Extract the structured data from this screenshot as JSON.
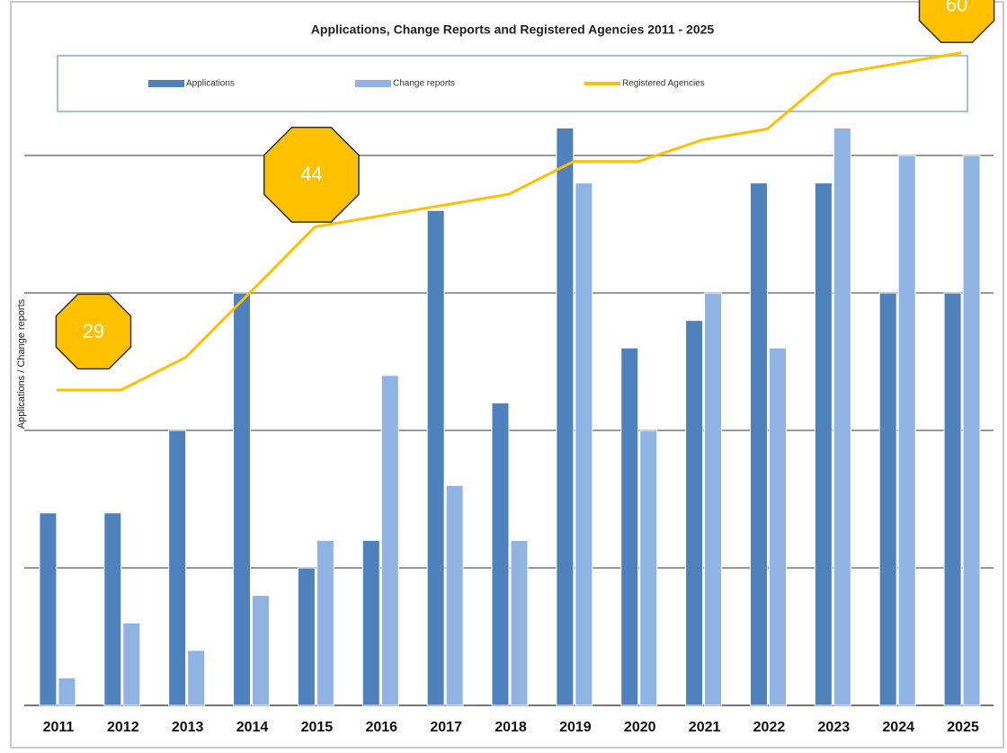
{
  "chart_data": {
    "type": "bar",
    "title": "Applications, Change Reports and Registered Agencies 2011 - 2025",
    "y_label": "Applications  / Change reports",
    "categories": [
      "2011",
      "2012",
      "2013",
      "2014",
      "2015",
      "2016",
      "2017",
      "2018",
      "2019",
      "2020",
      "2021",
      "2022",
      "2023",
      "2024",
      "2025"
    ],
    "series": [
      {
        "name": "Applications",
        "color": "#4f81bd",
        "values": [
          1.4,
          1.4,
          2.0,
          3.0,
          1.0,
          1.2,
          3.6,
          2.2,
          4.2,
          2.6,
          2.8,
          3.8,
          3.8,
          3.0,
          3.0
        ]
      },
      {
        "name": "Change reports",
        "color": "#8fb4e3",
        "values": [
          0.2,
          0.6,
          0.4,
          0.8,
          1.2,
          2.4,
          1.6,
          1.2,
          3.8,
          2.0,
          3.0,
          2.6,
          4.2,
          4.0,
          4.0
        ]
      },
      {
        "name": "Registered Agencies",
        "color": "#ffc000",
        "type": "line",
        "axis": "y2",
        "values": [
          29,
          29,
          32,
          38,
          44,
          45,
          46,
          47,
          50,
          50,
          52,
          53,
          58,
          59,
          60
        ],
        "value_labels": [
          "29",
          null,
          null,
          null,
          "44",
          null,
          null,
          null,
          null,
          null,
          null,
          null,
          null,
          null,
          "60"
        ]
      }
    ],
    "ylim": [
      0,
      5
    ],
    "yticks": [
      0,
      1,
      2,
      3,
      4
    ],
    "grid": true,
    "y2lim": [
      0,
      63.2
    ],
    "legend": "top"
  }
}
